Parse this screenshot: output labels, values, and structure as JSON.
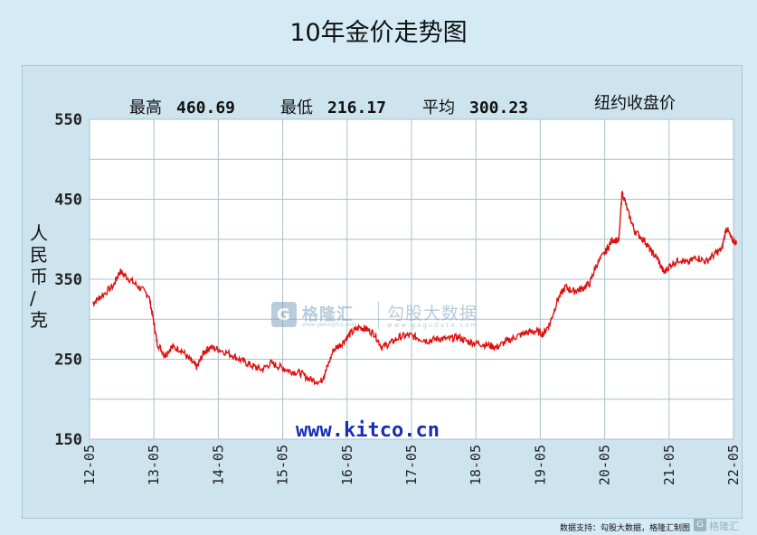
{
  "title": "10年金价走势图",
  "chart_data": {
    "type": "line",
    "stats": {
      "high_label": "最高",
      "high_value": "460.69",
      "low_label": "最低",
      "low_value": "216.17",
      "avg_label": "平均",
      "avg_value": "300.23",
      "source_label": "纽约收盘价"
    },
    "ylabel": "人民币/克",
    "ylim": [
      150,
      550
    ],
    "y_ticks": [
      "150",
      "250",
      "350",
      "450",
      "550"
    ],
    "x_tick_labels": [
      "12-05",
      "13-05",
      "14-05",
      "15-05",
      "16-05",
      "17-05",
      "18-05",
      "19-05",
      "20-05",
      "21-05",
      "22-05"
    ],
    "grid": true,
    "series": [
      {
        "color": "#e01010",
        "points": [
          [
            2012.38,
            320
          ],
          [
            2012.5,
            328
          ],
          [
            2012.7,
            342
          ],
          [
            2012.8,
            360
          ],
          [
            2012.95,
            350
          ],
          [
            2013.1,
            340
          ],
          [
            2013.25,
            330
          ],
          [
            2013.32,
            300
          ],
          [
            2013.38,
            270
          ],
          [
            2013.5,
            255
          ],
          [
            2013.6,
            265
          ],
          [
            2013.75,
            262
          ],
          [
            2013.9,
            248
          ],
          [
            2014.0,
            240
          ],
          [
            2014.1,
            258
          ],
          [
            2014.2,
            265
          ],
          [
            2014.35,
            262
          ],
          [
            2014.55,
            255
          ],
          [
            2014.7,
            248
          ],
          [
            2014.85,
            242
          ],
          [
            2015.0,
            237
          ],
          [
            2015.15,
            245
          ],
          [
            2015.3,
            240
          ],
          [
            2015.45,
            235
          ],
          [
            2015.6,
            233
          ],
          [
            2015.75,
            225
          ],
          [
            2015.92,
            222
          ],
          [
            2016.0,
            235
          ],
          [
            2016.12,
            262
          ],
          [
            2016.25,
            270
          ],
          [
            2016.38,
            282
          ],
          [
            2016.52,
            290
          ],
          [
            2016.62,
            288
          ],
          [
            2016.75,
            282
          ],
          [
            2016.87,
            265
          ],
          [
            2017.0,
            270
          ],
          [
            2017.15,
            278
          ],
          [
            2017.3,
            280
          ],
          [
            2017.45,
            276
          ],
          [
            2017.6,
            273
          ],
          [
            2017.75,
            276
          ],
          [
            2017.9,
            275
          ],
          [
            2018.05,
            278
          ],
          [
            2018.2,
            272
          ],
          [
            2018.35,
            270
          ],
          [
            2018.5,
            268
          ],
          [
            2018.65,
            265
          ],
          [
            2018.8,
            272
          ],
          [
            2018.95,
            278
          ],
          [
            2019.1,
            283
          ],
          [
            2019.25,
            285
          ],
          [
            2019.38,
            282
          ],
          [
            2019.48,
            295
          ],
          [
            2019.6,
            325
          ],
          [
            2019.72,
            340
          ],
          [
            2019.85,
            335
          ],
          [
            2019.97,
            338
          ],
          [
            2020.1,
            345
          ],
          [
            2020.2,
            368
          ],
          [
            2020.35,
            385
          ],
          [
            2020.45,
            400
          ],
          [
            2020.55,
            398
          ],
          [
            2020.6,
            460
          ],
          [
            2020.7,
            432
          ],
          [
            2020.8,
            410
          ],
          [
            2020.95,
            398
          ],
          [
            2021.05,
            385
          ],
          [
            2021.15,
            376
          ],
          [
            2021.25,
            358
          ],
          [
            2021.35,
            368
          ],
          [
            2021.5,
            375
          ],
          [
            2021.62,
            370
          ],
          [
            2021.75,
            378
          ],
          [
            2021.9,
            372
          ],
          [
            2022.05,
            382
          ],
          [
            2022.15,
            388
          ],
          [
            2022.22,
            415
          ],
          [
            2022.3,
            400
          ],
          [
            2022.38,
            395
          ]
        ]
      }
    ],
    "annotation": "www.kitco.cn"
  },
  "watermark": {
    "brand": "格隆汇",
    "brand_sub": "www.gelonghui.com",
    "brand2": "勾股大数据",
    "brand2_sub": "www.gogudata.com"
  },
  "footer": {
    "credit": "数据支持：勾股大数据，格隆汇制图"
  },
  "corner_logo": {
    "text": "格隆汇"
  }
}
